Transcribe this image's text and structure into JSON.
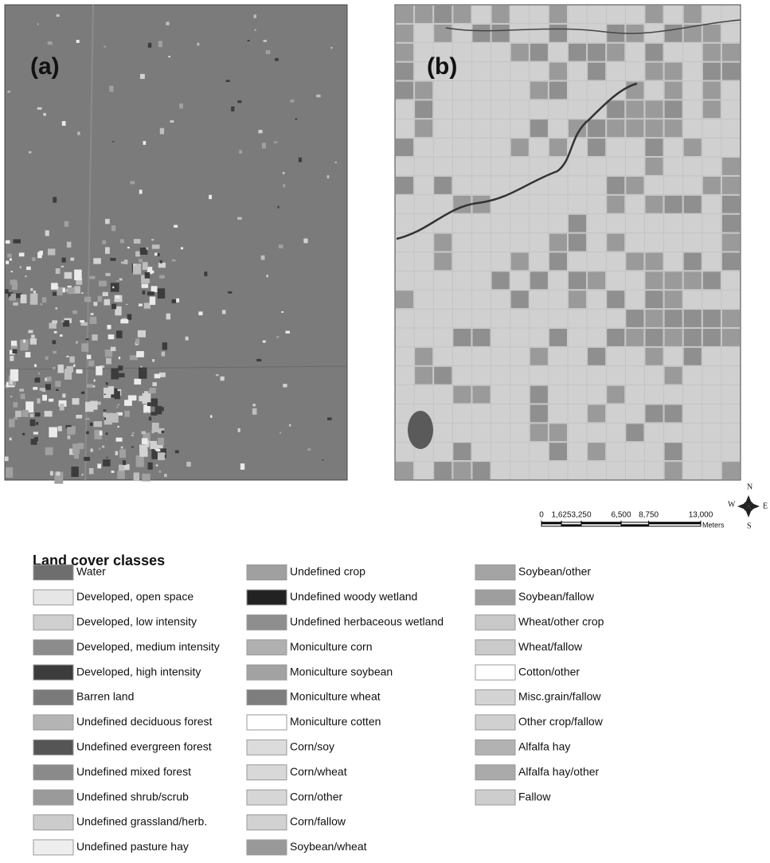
{
  "maps": [
    {
      "label": "(a)",
      "base_color": "#7b7b7b"
    },
    {
      "label": "(b)",
      "base_color": "#d0d0d0"
    }
  ],
  "compass": {
    "n": "N",
    "s": "S",
    "e": "E",
    "w": "W"
  },
  "scale_bar": {
    "ticks": [
      {
        "value": 0,
        "label": "0"
      },
      {
        "value": 1625,
        "label": "1,625"
      },
      {
        "value": 3250,
        "label": "3,250"
      },
      {
        "value": 6500,
        "label": "6,500"
      },
      {
        "value": 8750,
        "label": "8,750"
      },
      {
        "value": 13000,
        "label": "13,000"
      }
    ],
    "unit": "Meters"
  },
  "legend": {
    "title": "Land cover classes",
    "columns": [
      [
        {
          "label": "Water",
          "color": "#6e6e6e"
        },
        {
          "label": "Developed, open space",
          "color": "#e6e6e6"
        },
        {
          "label": "Developed, low intensity",
          "color": "#cfcfcf"
        },
        {
          "label": "Developed, medium intensity",
          "color": "#8c8c8c"
        },
        {
          "label": "Developed, high intensity",
          "color": "#3c3c3c"
        },
        {
          "label": "Barren land",
          "color": "#7a7a7a"
        },
        {
          "label": "Undefined deciduous forest",
          "color": "#b4b4b4"
        },
        {
          "label": "Undefined evergreen forest",
          "color": "#555555"
        },
        {
          "label": "Undefined mixed forest",
          "color": "#8a8a8a"
        },
        {
          "label": "Undefined shrub/scrub",
          "color": "#9a9a9a"
        },
        {
          "label": "Undefined grassland/herb.",
          "color": "#cccccc"
        },
        {
          "label": "Undefined pasture hay",
          "color": "#eeeeee"
        }
      ],
      [
        {
          "label": "Undefined crop",
          "color": "#a0a0a0"
        },
        {
          "label": "Undefined woody wetland",
          "color": "#222222"
        },
        {
          "label": "Undefined herbaceous wetland",
          "color": "#8e8e8e"
        },
        {
          "label": "Moniculture corn",
          "color": "#b0b0b0"
        },
        {
          "label": "Moniculture soybean",
          "color": "#a2a2a2"
        },
        {
          "label": "Moniculture wheat",
          "color": "#7e7e7e"
        },
        {
          "label": "Moniculture cotten",
          "color": "#ffffff"
        },
        {
          "label": "Corn/soy",
          "color": "#dcdcdc"
        },
        {
          "label": "Corn/wheat",
          "color": "#d8d8d8"
        },
        {
          "label": "Corn/other",
          "color": "#d6d6d6"
        },
        {
          "label": "Corn/fallow",
          "color": "#d2d2d2"
        },
        {
          "label": "Soybean/wheat",
          "color": "#999999"
        }
      ],
      [
        {
          "label": "Soybean/other",
          "color": "#a4a4a4"
        },
        {
          "label": "Soybean/fallow",
          "color": "#9e9e9e"
        },
        {
          "label": "Wheat/other crop",
          "color": "#c8c8c8"
        },
        {
          "label": "Wheat/fallow",
          "color": "#cacaca"
        },
        {
          "label": "Cotton/other",
          "color": "#ffffff"
        },
        {
          "label": "Misc.grain/fallow",
          "color": "#d4d4d4"
        },
        {
          "label": "Other crop/fallow",
          "color": "#d0d0d0"
        },
        {
          "label": "Alfalfa hay",
          "color": "#b2b2b2"
        },
        {
          "label": "Alfalfa hay/other",
          "color": "#aaaaaa"
        },
        {
          "label": "Fallow",
          "color": "#cdcdcd"
        }
      ]
    ]
  }
}
